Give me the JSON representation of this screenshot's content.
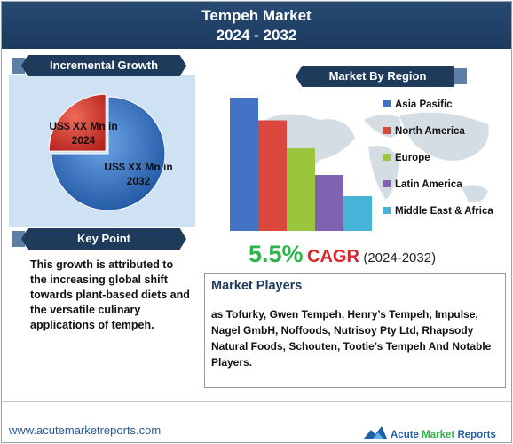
{
  "header": {
    "title_line1": "Tempeh Market",
    "title_line2": "2024 - 2032"
  },
  "incremental_growth": {
    "heading": "Incremental Growth",
    "label_2024": "US$ XX Mn in 2024",
    "label_2032": "US$ XX Mn in 2032"
  },
  "key_point": {
    "heading": "Key Point",
    "text": "This growth is attributed to the increasing global shift towards plant-based  diets and the versatile culinary applications  of tempeh."
  },
  "market_by_region": {
    "heading": "Market By Region"
  },
  "cagr": {
    "value": "5.5%",
    "word": "CAGR",
    "years": "(2024-2032)"
  },
  "market_players": {
    "heading": "Market Players",
    "text": "as Tofurky, Gwen Tempeh, Henry’s Tempeh, Impulse, Nagel GmbH, Noffoods, Nutrisoy Pty Ltd, Rhapsody  Natural Foods, Schouten, Tootie’s Tempeh And Notable Players."
  },
  "footer": {
    "url": "www.acutemarketreports.com",
    "brand_word1": "Acute",
    "brand_word2": "Market",
    "brand_word3": "Reports"
  },
  "colors": {
    "header": "#1f3b5c",
    "pie_2024": "#d83a32",
    "pie_2032": "#3c7bc9",
    "cagr_green": "#2eb34b",
    "cagr_red": "#d8262d"
  },
  "chart_data": [
    {
      "type": "pie",
      "labels": [
        "US$ XX Mn in 2024",
        "US$ XX Mn in 2032"
      ],
      "values": [
        25,
        75
      ]
    },
    {
      "type": "bar",
      "categories": [
        "Asia Pasific",
        "North America",
        "Europe",
        "Latin America",
        "Middle East & Africa"
      ],
      "values": [
        100,
        83,
        62,
        42,
        26
      ],
      "colors": [
        "#4472c4",
        "#d9473d",
        "#9bc53d",
        "#7f63b0",
        "#46b4d6"
      ],
      "legend_position": "right",
      "grid": false
    }
  ]
}
